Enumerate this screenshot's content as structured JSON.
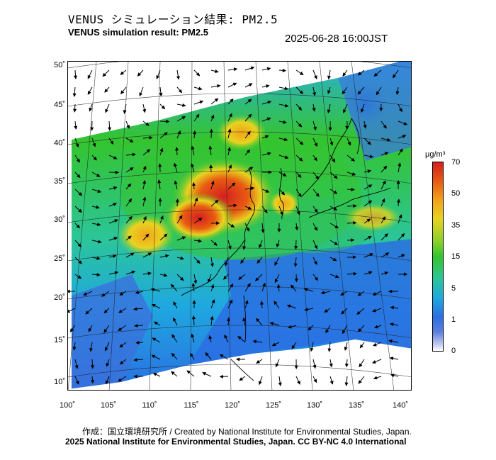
{
  "header": {
    "title_jp": "VENUS シミュレーション結果: PM2.5",
    "title_en": "VENUS simulation result: PM2.5",
    "timestamp": "2025-06-28 16:00JST"
  },
  "map": {
    "lat_labels": [
      "50˚",
      "45˚",
      "40˚",
      "35˚",
      "30˚",
      "25˚",
      "20˚",
      "15˚",
      "10˚"
    ],
    "lon_labels": [
      "100˚",
      "105˚",
      "110˚",
      "115˚",
      "120˚",
      "125˚",
      "130˚",
      "135˚",
      "140˚"
    ],
    "variable": "PM2.5",
    "colors": {
      "high": "#d41f1f",
      "mid": "#34c42e",
      "low": "#2a6fe2",
      "background": "#ffffff"
    }
  },
  "legend": {
    "unit": "μg/m³",
    "ticks": [
      "70",
      "50",
      "35",
      "15",
      "5",
      "1",
      "0"
    ]
  },
  "footer": {
    "credit_jp": "作成：国立環境研究所 / Created by National Institute for Environmental Studies, Japan.",
    "credit_en": "2025 National Institute for Environmental Studies, Japan. CC BY-NC 4.0 International"
  }
}
